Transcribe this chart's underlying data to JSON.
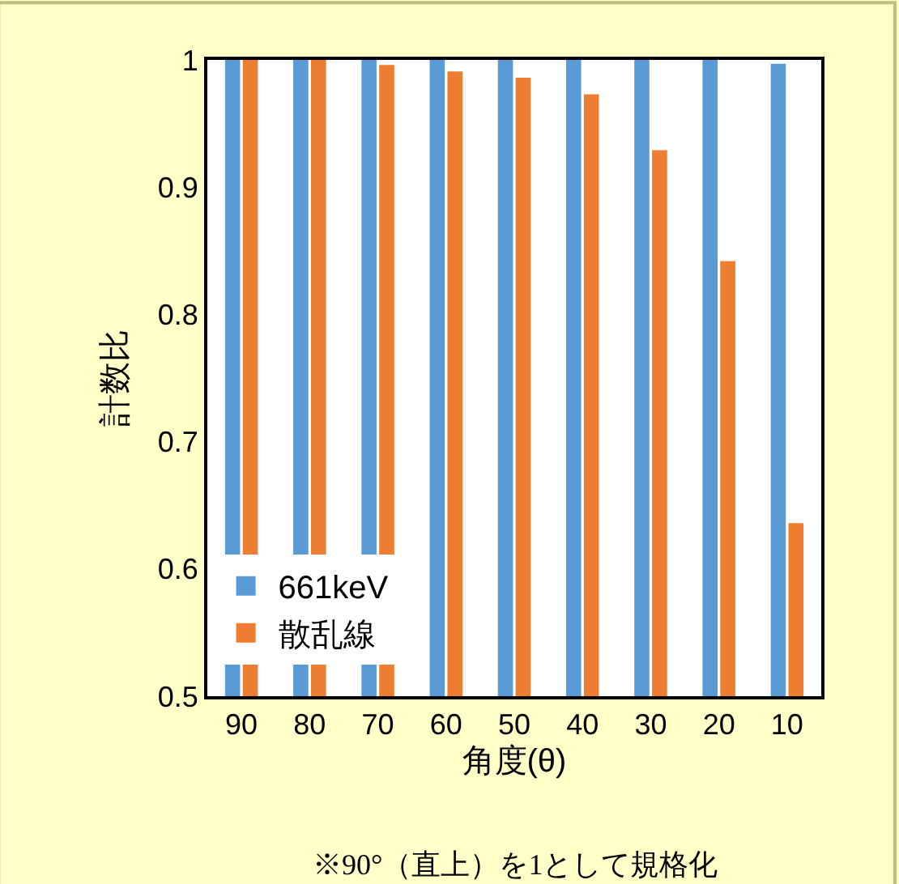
{
  "chart_data": {
    "type": "bar",
    "xlabel": "角度(θ)",
    "ylabel": "計数比",
    "categories": [
      "90",
      "80",
      "70",
      "60",
      "50",
      "40",
      "30",
      "20",
      "10"
    ],
    "series": [
      {
        "name": "661keV",
        "color": "#5b9bd5",
        "values": [
          1.0,
          1.0,
          1.0,
          1.0,
          1.0,
          1.0,
          1.0,
          1.0,
          0.997
        ]
      },
      {
        "name": "散乱線",
        "color": "#ed7d31",
        "values": [
          1.0,
          1.0,
          0.996,
          0.991,
          0.986,
          0.973,
          0.929,
          0.842,
          0.636
        ]
      }
    ],
    "ylim": [
      0.5,
      1.0
    ],
    "yticks": [
      0.5,
      0.6,
      0.7,
      0.8,
      0.9,
      1
    ],
    "grid": false,
    "legend": "bottom left",
    "annotations": [
      "※90°（直上）を1として規格化"
    ]
  }
}
